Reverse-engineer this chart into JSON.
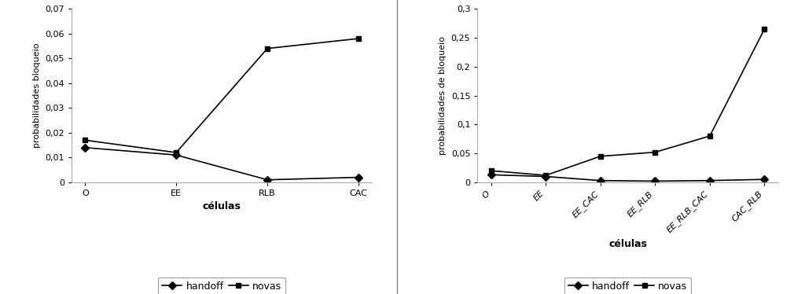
{
  "left": {
    "categories": [
      "O",
      "EE",
      "RLB",
      "CAC"
    ],
    "handoff": [
      0.014,
      0.011,
      0.001,
      0.002
    ],
    "novas": [
      0.017,
      0.012,
      0.054,
      0.058
    ],
    "ylabel": "probabilidades bloqueio",
    "xlabel": "células",
    "ylim": [
      0,
      0.07
    ],
    "yticks": [
      0,
      0.01,
      0.02,
      0.03,
      0.04,
      0.05,
      0.06,
      0.07
    ]
  },
  "right": {
    "categories": [
      "O",
      "EE",
      "EE_CAC",
      "EE_RLB",
      "EE_RLB_CAC",
      "CAC_RLB"
    ],
    "handoff": [
      0.013,
      0.01,
      0.003,
      0.002,
      0.003,
      0.005
    ],
    "novas": [
      0.02,
      0.012,
      0.045,
      0.052,
      0.08,
      0.265
    ],
    "ylabel": "probabilidades de bloqueio",
    "xlabel": "células",
    "ylim": [
      0,
      0.3
    ],
    "yticks": [
      0,
      0.05,
      0.1,
      0.15,
      0.2,
      0.25,
      0.3
    ]
  },
  "line_color": "#000000",
  "handoff_marker": "D",
  "novas_marker": "s",
  "marker_size": 5,
  "line_width": 1.2,
  "tick_font_size": 8,
  "ylabel_font_size": 8,
  "xlabel_font_size": 9,
  "legend_font_size": 9,
  "legend_handoff": "handoff",
  "legend_novas": "novas",
  "background_color": "#ffffff"
}
